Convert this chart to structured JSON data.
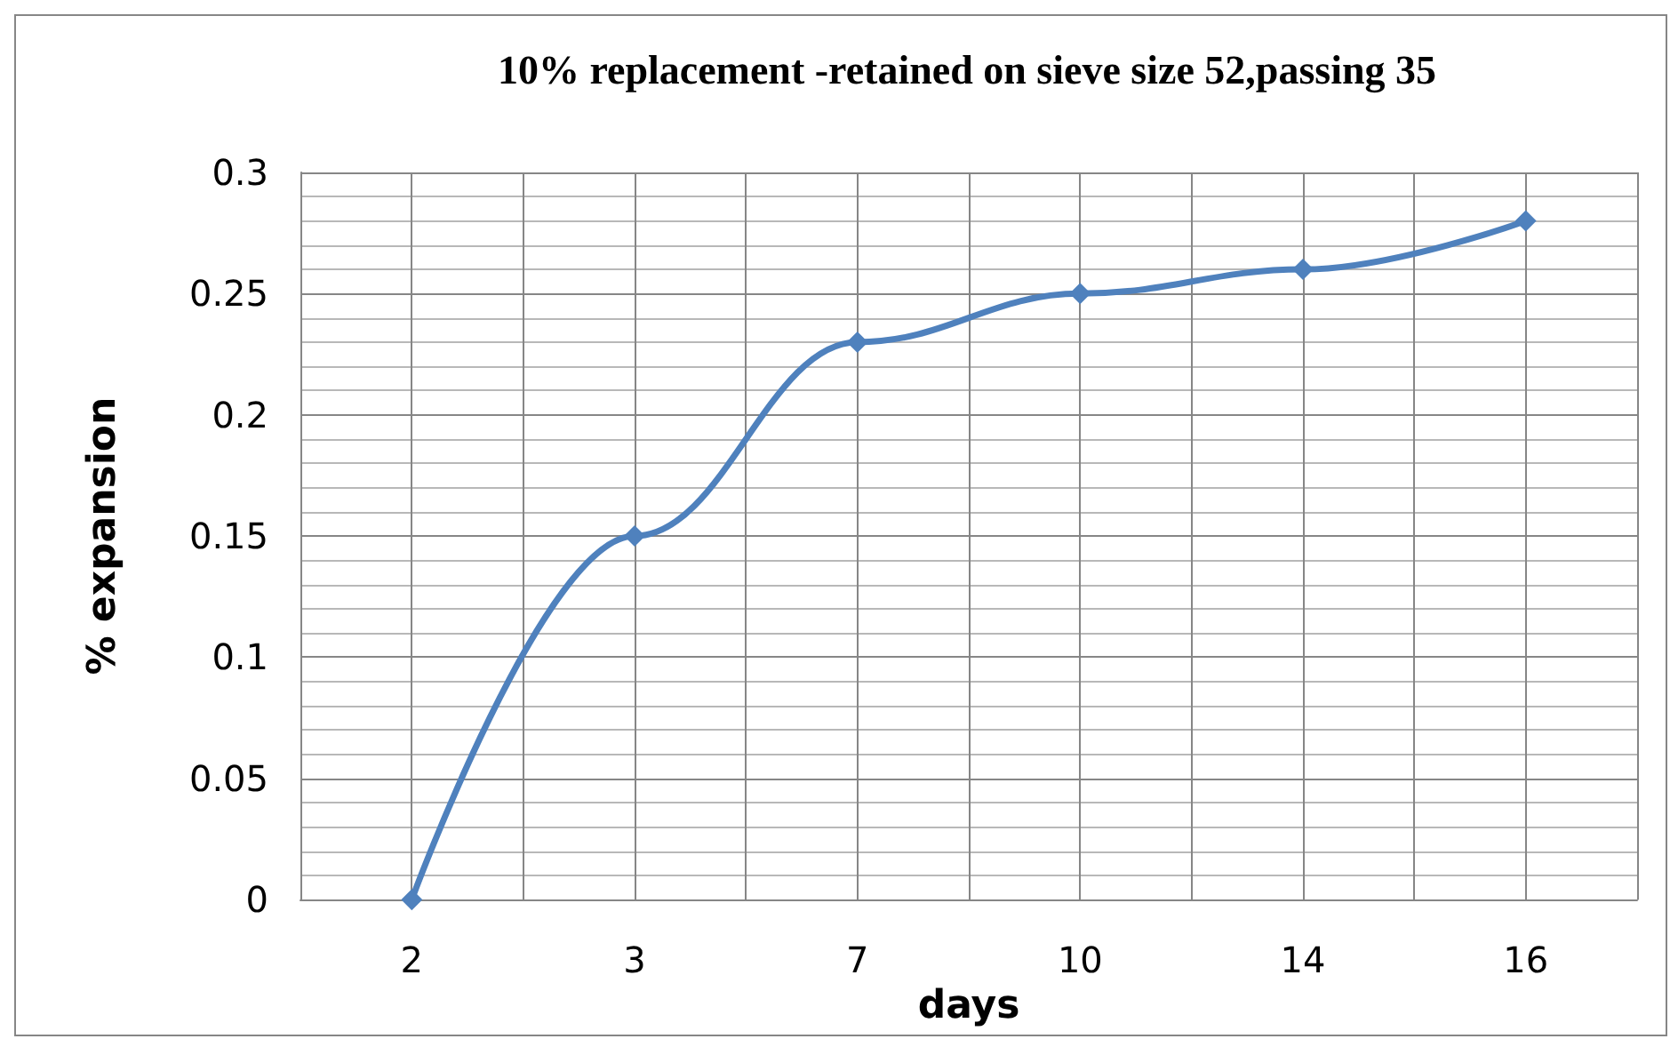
{
  "chart_data": {
    "type": "line",
    "title": "10% replacement -retained on sieve size 52,passing 35",
    "xlabel": "days",
    "ylabel": "% expansion",
    "categories": [
      "2",
      "3",
      "7",
      "10",
      "14",
      "16"
    ],
    "series": [
      {
        "color": "#4f81bd",
        "values": [
          0,
          0.15,
          0.23,
          0.25,
          0.26,
          0.28
        ]
      }
    ],
    "ylim": [
      0,
      0.3
    ],
    "yticks": [
      0,
      0.05,
      0.1,
      0.15,
      0.2,
      0.25,
      0.3
    ],
    "grid": true,
    "marker": "diamond",
    "line_style": "solid"
  }
}
